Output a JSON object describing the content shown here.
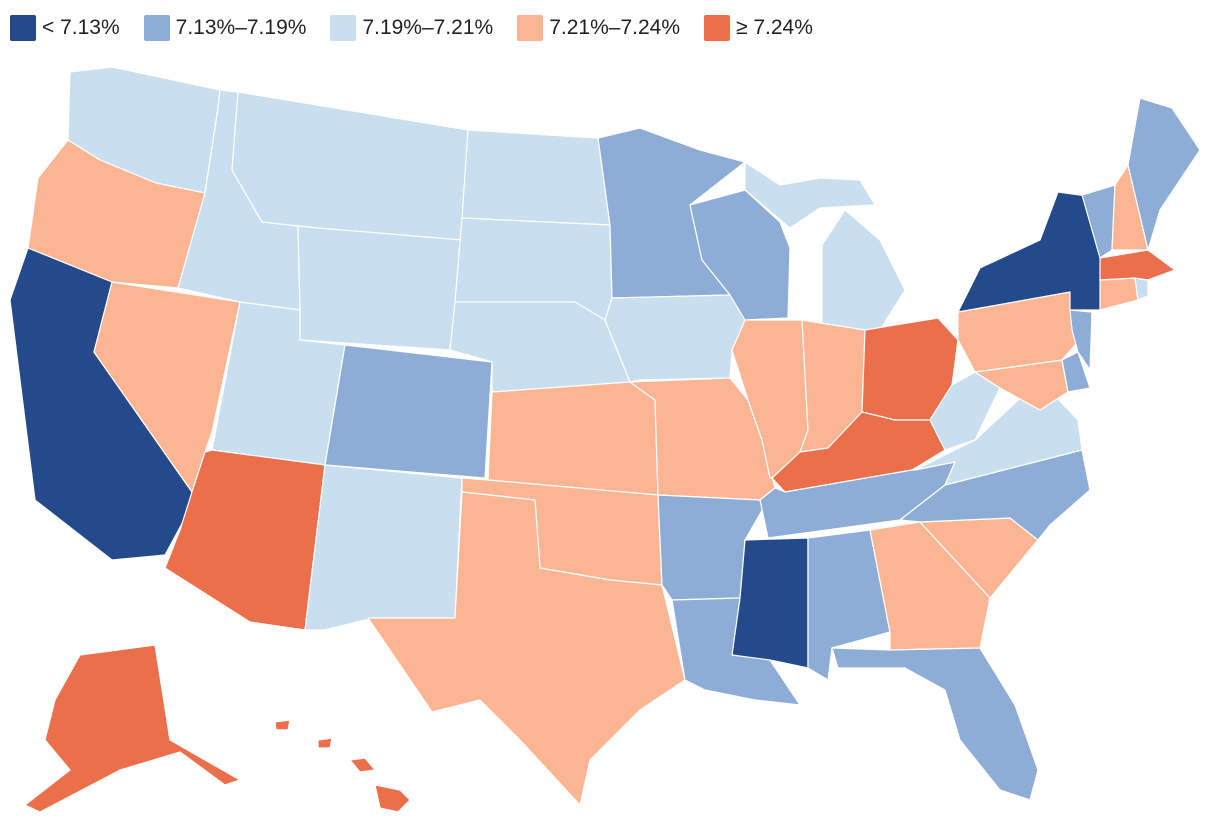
{
  "legend": {
    "bins": [
      {
        "label": "< 7.13%",
        "color": "#244a8b"
      },
      {
        "label": "7.13%–7.19%",
        "color": "#8eadd6"
      },
      {
        "label": "7.19%–7.21%",
        "color": "#c9dfef"
      },
      {
        "label": "7.21%–7.24%",
        "color": "#fcb592"
      },
      {
        "label": "≥ 7.24%",
        "color": "#ec6f4b"
      }
    ]
  },
  "states": {
    "WA": 2,
    "OR": 3,
    "CA": 0,
    "NV": 3,
    "ID": 2,
    "MT": 2,
    "WY": 2,
    "UT": 2,
    "AZ": 4,
    "CO": 1,
    "NM": 2,
    "ND": 2,
    "SD": 2,
    "NE": 2,
    "KS": 3,
    "OK": 3,
    "TX": 3,
    "MN": 1,
    "IA": 2,
    "MO": 3,
    "AR": 1,
    "LA": 1,
    "WI": 1,
    "IL": 3,
    "MI": 2,
    "IN": 3,
    "OH": 4,
    "KY": 4,
    "TN": 1,
    "MS": 0,
    "AL": 1,
    "GA": 3,
    "FL": 1,
    "SC": 3,
    "NC": 1,
    "VA": 2,
    "WV": 2,
    "MD": 3,
    "DE": 1,
    "PA": 3,
    "NJ": 1,
    "NY": 0,
    "CT": 3,
    "RI": 2,
    "MA": 4,
    "VT": 1,
    "NH": 3,
    "ME": 1,
    "AK": 4,
    "HI": 4
  }
}
